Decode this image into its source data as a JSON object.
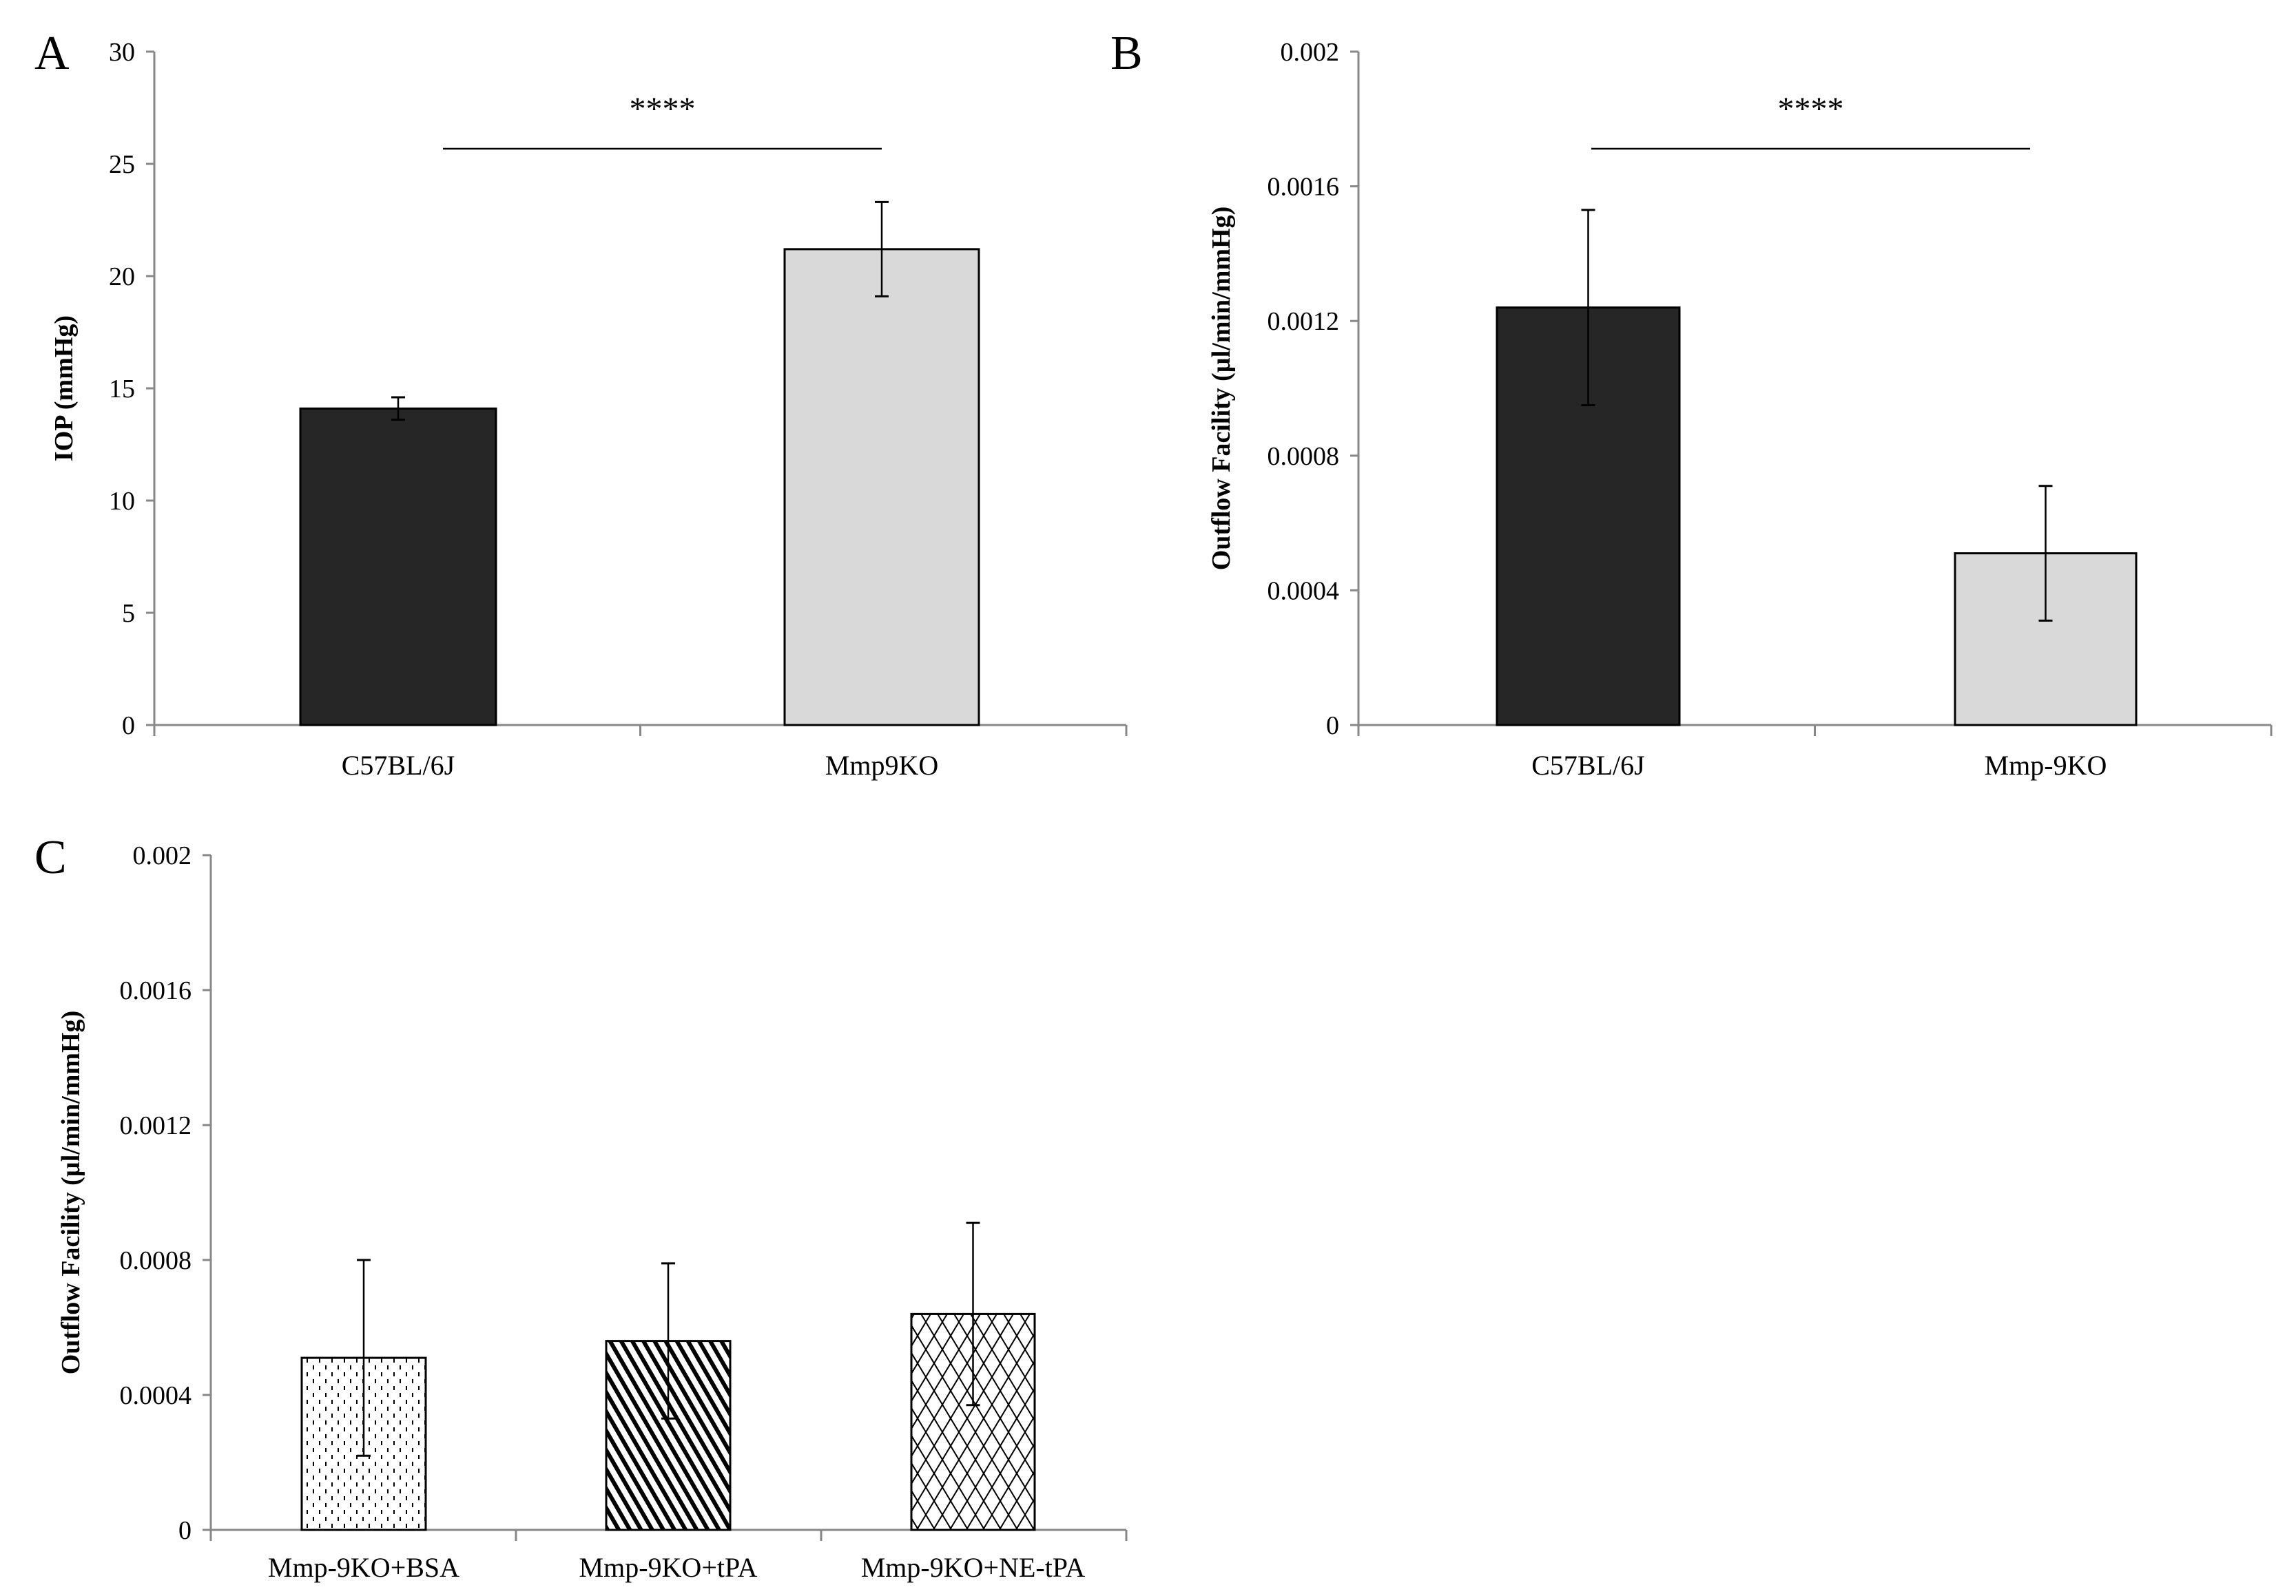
{
  "chart_data": [
    {
      "panel": "A",
      "type": "bar",
      "categories": [
        "C57BL/6J",
        "Mmp9KO"
      ],
      "values": [
        14.1,
        21.2
      ],
      "errors": [
        0.5,
        2.1
      ],
      "ylabel": "IOP (mmHg)",
      "xlabel": "",
      "ylim": [
        0,
        30
      ],
      "yticks": [
        "0",
        "5",
        "10",
        "15",
        "20",
        "25",
        "30"
      ],
      "fills": [
        "solid-dark",
        "solid-light"
      ],
      "colors": [
        "#262626",
        "#d9d9d9"
      ],
      "significance": "****",
      "grid": false
    },
    {
      "panel": "B",
      "type": "bar",
      "categories": [
        "C57BL/6J",
        "Mmp-9KO"
      ],
      "values": [
        0.00124,
        0.00051
      ],
      "errors": [
        0.00029,
        0.0002
      ],
      "ylabel": "Outflow Facility (µl/min/mmHg)",
      "xlabel": "",
      "ylim": [
        0,
        0.002
      ],
      "yticks": [
        "0",
        "0.0004",
        "0.0008",
        "0.0012",
        "0.0016",
        "0.002"
      ],
      "fills": [
        "solid-dark",
        "solid-light"
      ],
      "colors": [
        "#262626",
        "#d9d9d9"
      ],
      "significance": "****",
      "grid": false
    },
    {
      "panel": "C",
      "type": "bar",
      "categories": [
        "Mmp-9KO+BSA",
        "Mmp-9KO+tPA",
        "Mmp-9KO+NE-tPA"
      ],
      "values": [
        0.00051,
        0.00056,
        0.00064
      ],
      "errors": [
        0.00029,
        0.00023,
        0.00027
      ],
      "ylabel": "Outflow Facility (µl/min/mmHg)",
      "xlabel": "",
      "ylim": [
        0,
        0.002
      ],
      "yticks": [
        "0",
        "0.0004",
        "0.0008",
        "0.0012",
        "0.0016",
        "0.002"
      ],
      "fills": [
        "dots",
        "diagonal",
        "crosshatch"
      ],
      "colors": [
        "#ffffff",
        "#ffffff",
        "#ffffff"
      ],
      "significance": "",
      "grid": false
    }
  ]
}
